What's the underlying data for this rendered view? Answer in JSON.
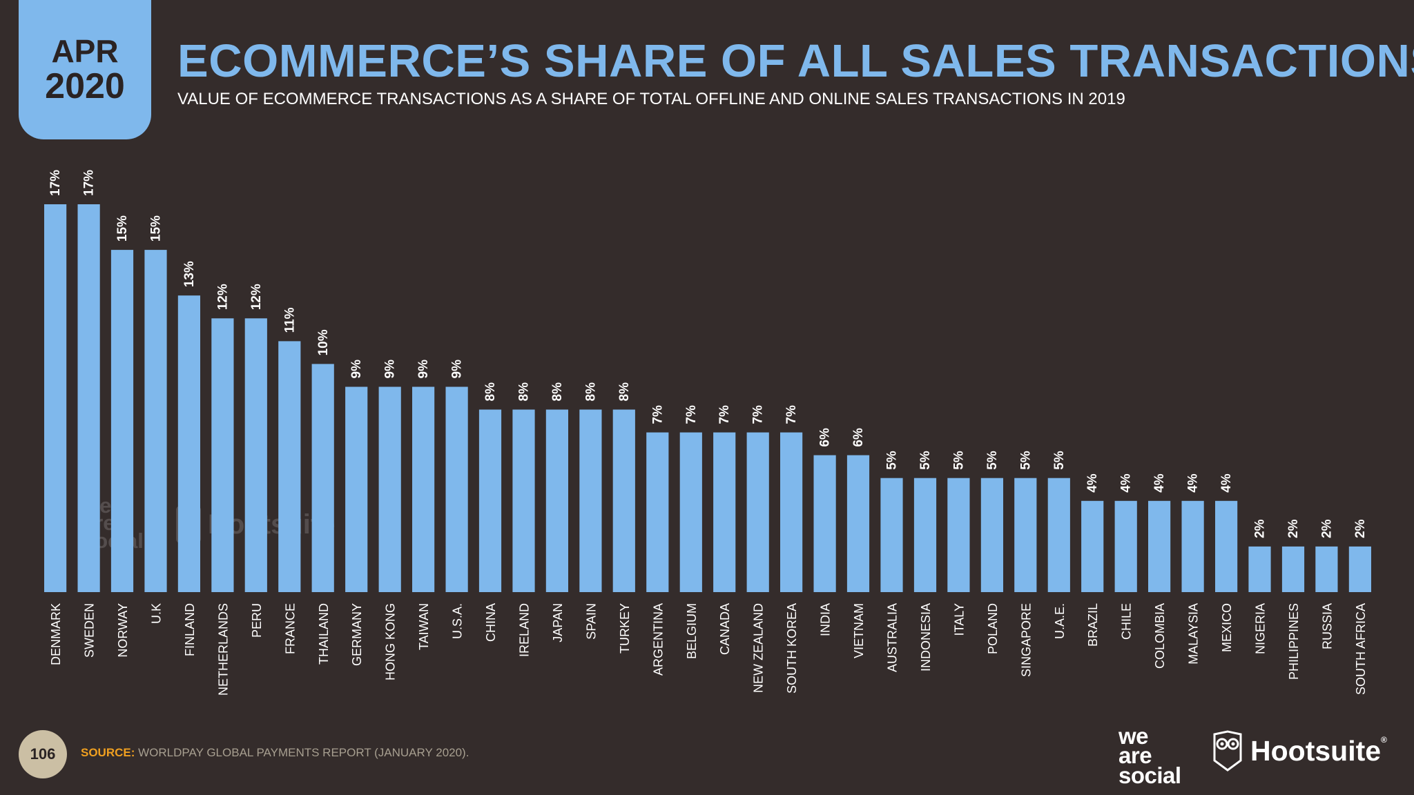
{
  "header": {
    "badge_month": "APR",
    "badge_year": "2020",
    "title": "ECOMMERCE’S SHARE OF ALL SALES TRANSACTIONS",
    "subtitle": "VALUE OF ECOMMERCE TRANSACTIONS AS A SHARE OF TOTAL OFFLINE AND ONLINE SALES TRANSACTIONS IN 2019"
  },
  "footer": {
    "page_number": "106",
    "source_label": "SOURCE:",
    "source_text": "WORLDPAY GLOBAL PAYMENTS REPORT (JANUARY 2020).",
    "logo_left": [
      "we",
      "are",
      "social"
    ],
    "logo_right": "Hootsuite",
    "logo_right_mark": "®"
  },
  "watermark": {
    "left": [
      "we",
      "are",
      "social"
    ],
    "right": "Hootsuite"
  },
  "colors": {
    "background": "#342c2b",
    "bar": "#7fb8ec",
    "accent": "#f0a020",
    "text": "#ffffff"
  },
  "chart_data": {
    "type": "bar",
    "title": "ECOMMERCE’S SHARE OF ALL SALES TRANSACTIONS",
    "categories": [
      "DENMARK",
      "SWEDEN",
      "NORWAY",
      "U.K",
      "FINLAND",
      "NETHERLANDS",
      "PERU",
      "FRANCE",
      "THAILAND",
      "GERMANY",
      "HONG KONG",
      "TAIWAN",
      "U.S.A.",
      "CHINA",
      "IRELAND",
      "JAPAN",
      "SPAIN",
      "TURKEY",
      "ARGENTINA",
      "BELGIUM",
      "CANADA",
      "NEW ZEALAND",
      "SOUTH KOREA",
      "INDIA",
      "VIETNAM",
      "AUSTRALIA",
      "INDONESIA",
      "ITALY",
      "POLAND",
      "SINGAPORE",
      "U.A.E.",
      "BRAZIL",
      "CHILE",
      "COLOMBIA",
      "MALAYSIA",
      "MEXICO",
      "NIGERIA",
      "PHILIPPINES",
      "RUSSIA",
      "SOUTH AFRICA"
    ],
    "values": [
      17,
      17,
      15,
      15,
      13,
      12,
      12,
      11,
      10,
      9,
      9,
      9,
      9,
      8,
      8,
      8,
      8,
      8,
      7,
      7,
      7,
      7,
      7,
      6,
      6,
      5,
      5,
      5,
      5,
      5,
      5,
      4,
      4,
      4,
      4,
      4,
      2,
      2,
      2,
      2
    ],
    "value_labels": [
      "17%",
      "17%",
      "15%",
      "15%",
      "13%",
      "12%",
      "12%",
      "11%",
      "10%",
      "9%",
      "9%",
      "9%",
      "9%",
      "8%",
      "8%",
      "8%",
      "8%",
      "8%",
      "7%",
      "7%",
      "7%",
      "7%",
      "7%",
      "6%",
      "6%",
      "5%",
      "5%",
      "5%",
      "5%",
      "5%",
      "5%",
      "4%",
      "4%",
      "4%",
      "4%",
      "4%",
      "2%",
      "2%",
      "2%",
      "2%"
    ],
    "ylim": [
      0,
      17
    ],
    "grid": false,
    "legend": "none"
  }
}
